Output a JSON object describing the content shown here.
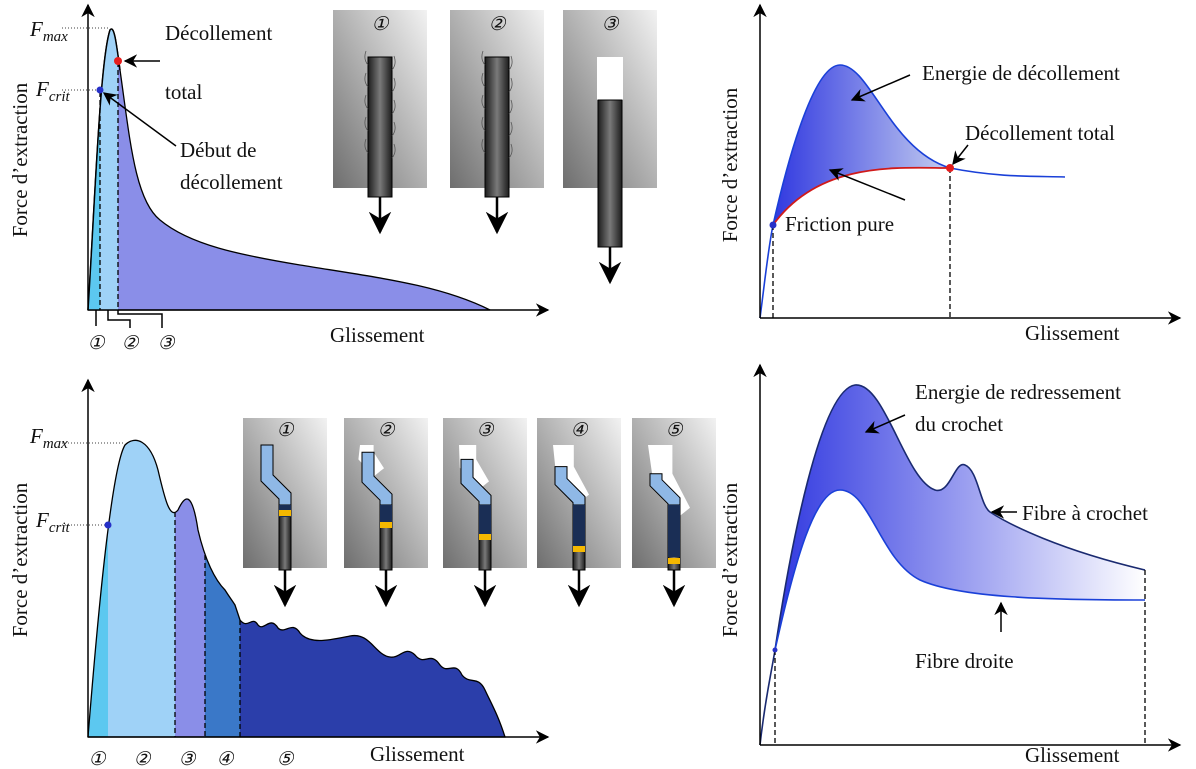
{
  "panels": [
    {
      "y_label": "Force d’extraction",
      "x_label": "Glissement",
      "f_max": {
        "symbol": "F",
        "subscript": "max"
      },
      "f_crit": {
        "symbol": "F",
        "subscript": "crit"
      },
      "stage_labels": [
        "①",
        "②",
        "③"
      ],
      "image_labels": [
        "①",
        "②",
        "③"
      ],
      "annotations": {
        "full_debond": [
          "Décollement",
          "total"
        ],
        "debond_start": [
          "Début de",
          "décollement"
        ]
      }
    },
    {
      "y_label": "Force d’extraction",
      "x_label": "Glissement",
      "annotations": {
        "energy": "Energie de décollement",
        "full_debond": "Décollement total",
        "friction": "Friction pure"
      }
    },
    {
      "y_label": "Force d’extraction",
      "x_label": "Glissement",
      "f_max": {
        "symbol": "F",
        "subscript": "max"
      },
      "f_crit": {
        "symbol": "F",
        "subscript": "crit"
      },
      "stage_labels": [
        "①",
        "②",
        "③",
        "④",
        "⑤"
      ],
      "image_labels": [
        "①",
        "②",
        "③",
        "④",
        "⑤"
      ]
    },
    {
      "y_label": "Force d’extraction",
      "x_label": "Glissement",
      "annotations": {
        "energy": [
          "Energie de redressement",
          "du crochet"
        ],
        "hooked": "Fibre à crochet",
        "straight": "Fibre droite"
      }
    }
  ]
}
